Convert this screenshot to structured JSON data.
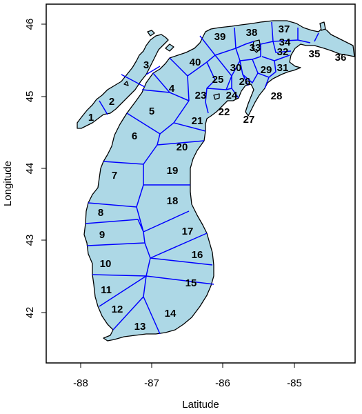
{
  "plot": {
    "x_axis_title": "Latitude",
    "y_axis_title": "Longitude",
    "x_ticks": [
      "-88",
      "-87",
      "-86",
      "-85"
    ],
    "y_ticks": [
      "42",
      "43",
      "44",
      "45",
      "46"
    ]
  },
  "colors": {
    "land": "#add8e6",
    "coastline": "#000000",
    "region_border": "#0000ff",
    "label": "#000000"
  },
  "regions": [
    "1",
    "2",
    "3",
    "4",
    "5",
    "6",
    "7",
    "8",
    "9",
    "10",
    "11",
    "12",
    "13",
    "14",
    "15",
    "16",
    "17",
    "18",
    "19",
    "20",
    "21",
    "22",
    "23",
    "24",
    "25",
    "26",
    "27",
    "28",
    "29",
    "30",
    "31",
    "32",
    "33",
    "34",
    "35",
    "36",
    "37",
    "38",
    "39",
    "40"
  ]
}
